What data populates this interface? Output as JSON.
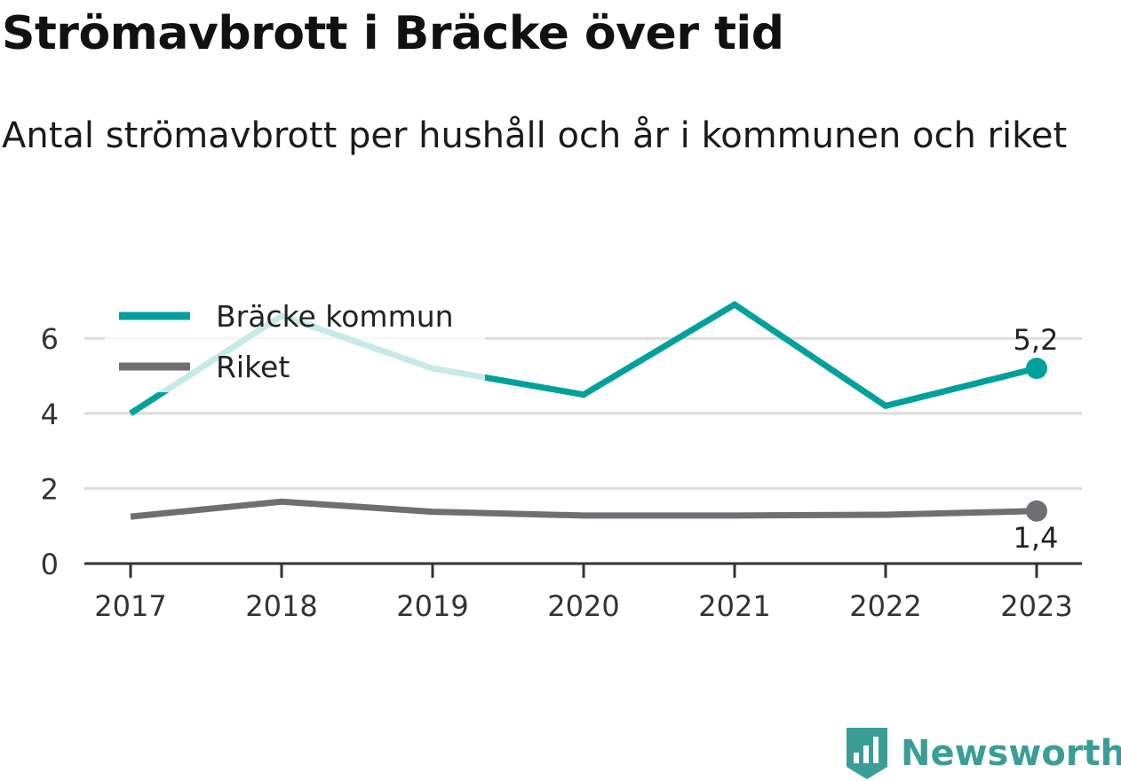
{
  "title": "Strömavbrott i Bräcke över tid",
  "subtitle": "Antal strömavbrott per hushåll och år i kommunen och riket",
  "brand": {
    "name": "Newsworthy",
    "color": "#3b9e96"
  },
  "chart_data": {
    "type": "line",
    "x": [
      "2017",
      "2018",
      "2019",
      "2020",
      "2021",
      "2022",
      "2023"
    ],
    "ylim": [
      0,
      7
    ],
    "yticks": [
      0,
      2,
      4,
      6
    ],
    "grid": true,
    "legend_position": "top-left",
    "series": [
      {
        "name": "Bräcke kommun",
        "color": "#00a19a",
        "values": [
          4.0,
          6.6,
          5.2,
          4.5,
          6.9,
          4.2,
          5.2
        ],
        "end_label": "5,2"
      },
      {
        "name": "Riket",
        "color": "#6e6e73",
        "values": [
          1.25,
          1.65,
          1.38,
          1.28,
          1.28,
          1.3,
          1.4
        ],
        "end_label": "1,4"
      }
    ]
  }
}
